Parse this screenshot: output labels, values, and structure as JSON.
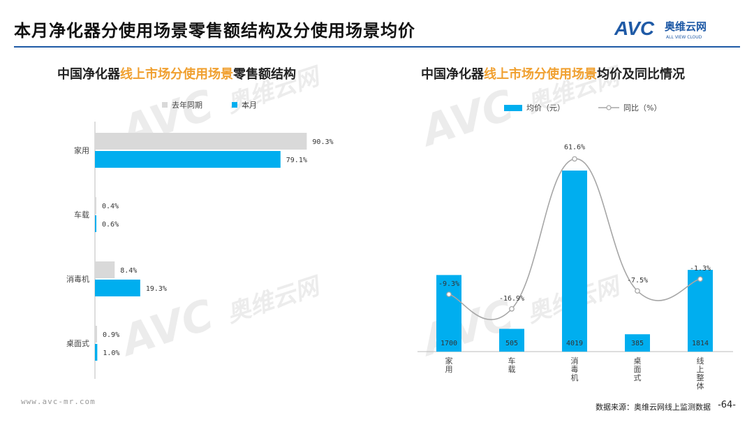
{
  "header": {
    "title": "本月净化器分使用场景零售额结构及分使用场景均价",
    "logo_mark": "AVC",
    "logo_cn": "奥维云网",
    "logo_en": "ALL VIEW CLOUD"
  },
  "watermark": {
    "mark": "AVC",
    "cn": "奥维云网",
    "en": "ALL VIEW CLOUD"
  },
  "colors": {
    "current": "#00aeef",
    "last_year": "#d9d9d9",
    "highlight": "#f0a030",
    "line": "#a6a6a6",
    "rule": "#1f5aa6"
  },
  "left_chart": {
    "title_prefix": "中国净化器",
    "title_highlight": "线上市场分使用场景",
    "title_suffix": "零售额结构",
    "legend_last_year": "去年同期",
    "legend_current": "本月"
  },
  "right_chart": {
    "title_prefix": "中国净化器",
    "title_highlight": "线上市场分使用场景",
    "title_suffix": "均价及同比情况",
    "legend_bar": "均价（元）",
    "legend_line": "同比（%）"
  },
  "chart_data": [
    {
      "type": "bar",
      "orientation": "horizontal",
      "title": "中国净化器线上市场分使用场景零售额结构",
      "categories": [
        "家用",
        "车载",
        "消毒机",
        "桌面式"
      ],
      "series": [
        {
          "name": "去年同期",
          "values": [
            90.3,
            0.4,
            8.4,
            0.9
          ],
          "labels": [
            "90.3%",
            "0.4%",
            "8.4%",
            "0.9%"
          ]
        },
        {
          "name": "本月",
          "values": [
            79.1,
            0.6,
            19.3,
            1.0
          ],
          "labels": [
            "79.1%",
            "0.6%",
            "19.3%",
            "1.0%"
          ]
        }
      ],
      "xlim": [
        0,
        100
      ],
      "legend": "top"
    },
    {
      "type": "bar+line",
      "title": "中国净化器线上市场分使用场景均价及同比情况",
      "categories": [
        "家用",
        "车载",
        "消毒机",
        "桌面式",
        "线上整体"
      ],
      "series": [
        {
          "name": "均价（元）",
          "type": "bar",
          "values": [
            1700,
            505,
            4019,
            385,
            1814
          ],
          "labels": [
            "1700",
            "505",
            "4019",
            "385",
            "1814"
          ]
        },
        {
          "name": "同比（%）",
          "type": "line",
          "values": [
            -9.3,
            -16.9,
            61.6,
            -7.5,
            -1.3
          ],
          "labels": [
            "-9.3%",
            "-16.9%",
            "61.6%",
            "-7.5%",
            "-1.3%"
          ]
        }
      ],
      "ylim_bar": [
        0,
        4500
      ],
      "ylim_line": [
        -25,
        65
      ],
      "legend": "top"
    }
  ],
  "footer": {
    "url": "www.avc-mr.com",
    "source": "数据来源：奥维云网线上监测数据",
    "page": "-64-"
  }
}
